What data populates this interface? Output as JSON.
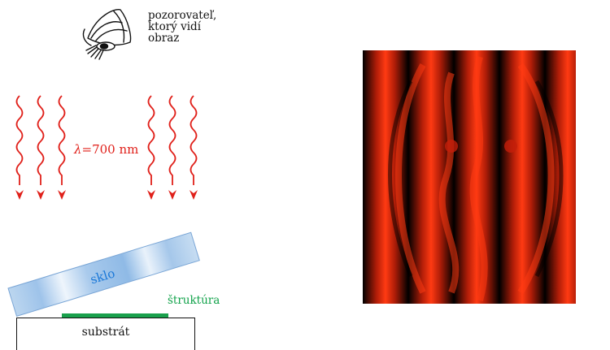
{
  "observer": {
    "icon": "eye-icon",
    "label_lines": [
      "pozorovateľ,",
      "ktorý vidí",
      "obraz"
    ]
  },
  "light": {
    "symbol": "λ",
    "value": "=700 nm",
    "color": "#e0201a"
  },
  "glass": {
    "label": "sklo",
    "color": "#1a78d8"
  },
  "structure": {
    "label": "štruktúra",
    "color": "#11a24a"
  },
  "substrate": {
    "label": "substrát"
  },
  "interference_image": {
    "fringe_color": "#ff3a12",
    "dark_color": "#000000"
  }
}
